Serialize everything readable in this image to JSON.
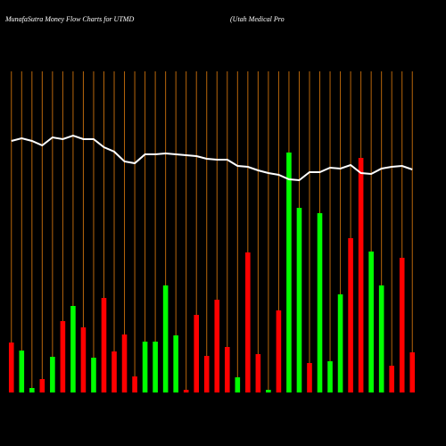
{
  "chart_data": {
    "type": "bar",
    "title": "MunafaSutra  Money Flow  Charts for UTMD",
    "subtitle": "(Utah Medical Pro",
    "values": [
      56,
      47,
      5,
      15,
      40,
      80,
      97,
      73,
      39,
      106,
      46,
      65,
      18,
      57,
      57,
      120,
      64,
      3,
      87,
      41,
      104,
      51,
      17,
      157,
      43,
      3,
      92,
      269,
      207,
      33,
      201,
      35,
      110,
      173,
      263,
      158,
      120,
      30,
      151,
      45
    ],
    "colors": [
      "#ff0000",
      "#00ff00",
      "#00ff00",
      "#ff0000",
      "#00ff00",
      "#ff0000",
      "#00ff00",
      "#ff0000",
      "#00ff00",
      "#ff0000",
      "#ff0000",
      "#ff0000",
      "#ff0000",
      "#00ff00",
      "#00ff00",
      "#00ff00",
      "#00ff00",
      "#ff0000",
      "#ff0000",
      "#ff0000",
      "#ff0000",
      "#ff0000",
      "#00ff00",
      "#ff0000",
      "#ff0000",
      "#00ff00",
      "#ff0000",
      "#00ff00",
      "#00ff00",
      "#ff0000",
      "#00ff00",
      "#00ff00",
      "#00ff00",
      "#ff0000",
      "#ff0000",
      "#00ff00",
      "#00ff00",
      "#ff0000",
      "#ff0000",
      "#ff0000"
    ],
    "line_values": [
      282,
      285,
      282,
      277,
      286,
      284,
      288,
      284,
      284,
      275,
      270,
      259,
      257,
      267,
      267,
      268,
      267,
      266,
      265,
      262,
      261,
      261,
      254,
      253,
      249,
      246,
      244,
      239,
      238,
      247,
      247,
      252,
      251,
      255,
      246,
      245,
      251,
      253,
      254,
      250
    ],
    "line_color": "#ffffff",
    "ylim": [
      0,
      360
    ]
  }
}
